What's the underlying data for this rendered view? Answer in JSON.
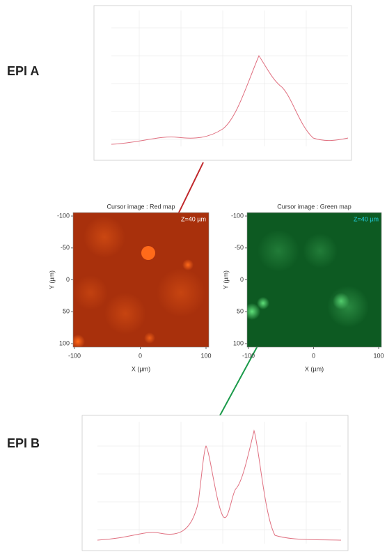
{
  "panels": [
    {
      "label": "EPI A"
    },
    {
      "label": "EPI B"
    }
  ],
  "maps": [
    {
      "title": "Cursor image : Red map",
      "z_label": "Z=40 µm",
      "x_ticks": [
        -100,
        0,
        100
      ],
      "y_ticks": [
        -100,
        -50,
        0,
        50,
        100
      ],
      "x_label": "X (µm)",
      "y_label": "Y (µm)"
    },
    {
      "title": "Cursor image : Green map",
      "z_label": "Z=40 µm",
      "x_ticks": [
        -100,
        0,
        100
      ],
      "y_ticks": [
        -100,
        -50,
        0,
        50,
        100
      ],
      "x_label": "X (µm)",
      "y_label": "Y (µm)"
    }
  ]
}
